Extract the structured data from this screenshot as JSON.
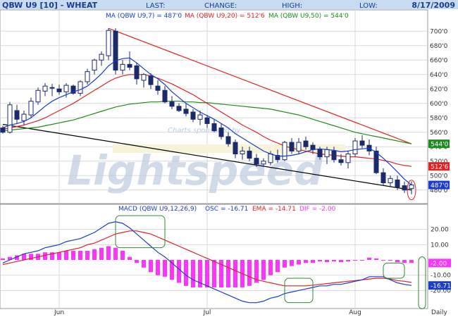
{
  "header": {
    "symbol": "QBW U9 [10] - WHEAT",
    "last_label": "LAST:",
    "change_label": "CHANGE:",
    "high_label": "HIGH:",
    "low_label": "LOW:",
    "date": "8/17/2009"
  },
  "colors": {
    "header_bg": "#c7dcf3",
    "header_text": "#1a3d8f",
    "grid": "#d9d9d9",
    "candle": "#1b2a6b",
    "ma7": "#1a3ccf",
    "ma20": "#e02222",
    "ma50": "#1d8a1d",
    "trend_upper": "#e02222",
    "trend_lower": "#000000",
    "histogram": "#ff33ff",
    "macd": "#1a3ccf",
    "signal": "#e02222",
    "highlight_box": "#2e8b2e",
    "highlight_ellipse": "#e02222",
    "watermark": "#bccbe0"
  },
  "watermark": {
    "main": "Lightspeed",
    "small": "Charts sponsored by"
  },
  "bottom_label": "Daily",
  "chart_data": [
    {
      "type": "candlestick",
      "title": "QBW U9 [10] - WHEAT",
      "legend": [
        {
          "name": "MA (QBW U9,7) = 487'0",
          "color": "#1a3ccf"
        },
        {
          "name": "MA (QBW U9,20) = 512'6",
          "color": "#e02222"
        },
        {
          "name": "MA (QBW U9,50) = 544'0",
          "color": "#1d8a1d"
        }
      ],
      "x_ticks": [
        "Jun",
        "Jul",
        "Aug"
      ],
      "x_tick_index": [
        8,
        29,
        50
      ],
      "y_ticks": [
        "700'0",
        "680'0",
        "660'0",
        "640'0",
        "620'0",
        "600'0",
        "580'0",
        "560'0",
        "540'0",
        "520'0",
        "500'0",
        "480'0"
      ],
      "ylim": [
        470,
        710
      ],
      "price_tags": [
        {
          "label": "544'0",
          "value": 544,
          "color": "#1d8a1d"
        },
        {
          "label": "512'6",
          "value": 512.75,
          "color": "#e02222"
        },
        {
          "label": "487'0",
          "value": 487,
          "color": "#1a3ccf"
        }
      ],
      "candles": [
        [
          566,
          569,
          558,
          560
        ],
        [
          560,
          602,
          558,
          598
        ],
        [
          590,
          598,
          572,
          578
        ],
        [
          576,
          590,
          570,
          585
        ],
        [
          584,
          608,
          580,
          603
        ],
        [
          602,
          622,
          598,
          618
        ],
        [
          617,
          628,
          610,
          624
        ],
        [
          621,
          627,
          610,
          622
        ],
        [
          620,
          626,
          612,
          616
        ],
        [
          616,
          628,
          608,
          625
        ],
        [
          624,
          626,
          612,
          614
        ],
        [
          614,
          632,
          610,
          630
        ],
        [
          630,
          648,
          626,
          644
        ],
        [
          646,
          662,
          640,
          660
        ],
        [
          660,
          672,
          652,
          668
        ],
        [
          666,
          704,
          660,
          701
        ],
        [
          700,
          704,
          640,
          646
        ],
        [
          646,
          660,
          640,
          654
        ],
        [
          654,
          672,
          646,
          650
        ],
        [
          652,
          656,
          626,
          634
        ],
        [
          632,
          642,
          622,
          640
        ],
        [
          638,
          642,
          620,
          626
        ],
        [
          624,
          632,
          612,
          618
        ],
        [
          618,
          624,
          600,
          602
        ],
        [
          602,
          610,
          592,
          596
        ],
        [
          596,
          600,
          588,
          590
        ],
        [
          592,
          600,
          582,
          586
        ],
        [
          588,
          592,
          574,
          578
        ],
        [
          578,
          590,
          570,
          584
        ],
        [
          580,
          584,
          566,
          572
        ],
        [
          572,
          578,
          560,
          562
        ],
        [
          566,
          572,
          550,
          554
        ],
        [
          554,
          560,
          540,
          544
        ],
        [
          546,
          550,
          524,
          530
        ],
        [
          530,
          540,
          522,
          534
        ],
        [
          534,
          540,
          520,
          524
        ],
        [
          524,
          530,
          512,
          516
        ],
        [
          516,
          524,
          512,
          520
        ],
        [
          518,
          534,
          514,
          530
        ],
        [
          528,
          536,
          518,
          522
        ],
        [
          522,
          548,
          520,
          546
        ],
        [
          546,
          552,
          530,
          534
        ],
        [
          534,
          552,
          530,
          546
        ],
        [
          548,
          554,
          536,
          540
        ],
        [
          542,
          546,
          530,
          536
        ],
        [
          536,
          540,
          522,
          526
        ],
        [
          526,
          540,
          516,
          536
        ],
        [
          534,
          540,
          518,
          522
        ],
        [
          522,
          530,
          514,
          518
        ],
        [
          518,
          534,
          510,
          530
        ],
        [
          530,
          552,
          526,
          548
        ],
        [
          548,
          556,
          538,
          542
        ],
        [
          542,
          550,
          528,
          534
        ],
        [
          534,
          540,
          502,
          504
        ],
        [
          504,
          510,
          486,
          490
        ],
        [
          490,
          500,
          484,
          496
        ],
        [
          494,
          500,
          480,
          484
        ],
        [
          486,
          492,
          476,
          480
        ],
        [
          482,
          492,
          474,
          487
        ]
      ],
      "ma7": [
        566,
        570,
        572,
        575,
        580,
        588,
        596,
        603,
        608,
        612,
        616,
        619,
        624,
        632,
        641,
        652,
        659,
        662,
        663,
        656,
        648,
        640,
        634,
        626,
        616,
        608,
        600,
        594,
        588,
        583,
        578,
        572,
        566,
        558,
        552,
        546,
        540,
        534,
        530,
        527,
        527,
        528,
        530,
        533,
        536,
        537,
        536,
        535,
        533,
        534,
        536,
        537,
        538,
        532,
        524,
        515,
        505,
        495,
        487
      ],
      "ma20": [
        564,
        566,
        568,
        570,
        573,
        576,
        580,
        585,
        590,
        595,
        600,
        606,
        612,
        618,
        624,
        630,
        635,
        638,
        640,
        640,
        640,
        638,
        635,
        631,
        627,
        622,
        617,
        612,
        606,
        600,
        594,
        588,
        582,
        576,
        570,
        565,
        560,
        554,
        549,
        545,
        541,
        538,
        536,
        534,
        532,
        530,
        529,
        528,
        527,
        526,
        526,
        525,
        524,
        523,
        521,
        519,
        516,
        514,
        512.75
      ],
      "ma50": [
        562,
        563,
        564,
        565,
        566,
        567,
        569,
        571,
        573,
        575,
        577,
        580,
        583,
        586,
        589,
        592,
        595,
        597,
        599,
        600,
        601,
        602,
        602,
        603,
        603,
        603,
        602,
        602,
        601,
        601,
        600,
        599,
        598,
        597,
        596,
        595,
        594,
        593,
        592,
        590,
        588,
        586,
        584,
        581,
        578,
        575,
        572,
        569,
        566,
        563,
        560,
        558,
        556,
        554,
        552,
        550,
        548,
        546,
        544
      ],
      "trend_upper": [
        [
          15,
          704
        ],
        [
          58,
          544
        ]
      ],
      "trend_lower": [
        [
          0,
          571
        ],
        [
          58,
          480
        ]
      ],
      "ellipse_index": 58
    },
    {
      "type": "macd",
      "legend": [
        {
          "name": "MACD (QBW U9,12,26,9)",
          "color": "#1a3ccf"
        },
        {
          "name": "OSC = -16.71",
          "color": "#1a3ccf"
        },
        {
          "name": "EMA = -14.71",
          "color": "#e02222"
        },
        {
          "name": "DIF = -2.00",
          "color": "#ff33ff"
        }
      ],
      "y_ticks": [
        "20.00",
        "10.00",
        "-10.00",
        "-20.00"
      ],
      "ylim": [
        -30,
        30
      ],
      "value_tags": [
        {
          "label": "-2.00",
          "value": -2.0,
          "color": "#ff33ff"
        },
        {
          "label": "-16.71",
          "value": -16.71,
          "color": "#1a3ccf"
        }
      ],
      "macd": [
        -2,
        0,
        2,
        4,
        5,
        6,
        8,
        9,
        10,
        12,
        13,
        14,
        16,
        18,
        21,
        24,
        25,
        24,
        21,
        17,
        13,
        9,
        5,
        2,
        -2,
        -6,
        -10,
        -13,
        -15,
        -17,
        -19,
        -21,
        -23,
        -25,
        -27,
        -28,
        -28,
        -27,
        -25,
        -24,
        -22,
        -21,
        -20,
        -19,
        -18,
        -17,
        -17,
        -16,
        -16,
        -15,
        -14,
        -13,
        -11,
        -11,
        -11,
        -13,
        -15,
        -16,
        -16.71
      ],
      "signal": [
        -3,
        -2,
        -1,
        0,
        1,
        2,
        3,
        4,
        5,
        6,
        7,
        8,
        10,
        11,
        13,
        15,
        17,
        18,
        19,
        19,
        18,
        17,
        15,
        13,
        11,
        9,
        7,
        5,
        3,
        1,
        -1,
        -3,
        -5,
        -7,
        -9,
        -11,
        -13,
        -14,
        -15,
        -16,
        -17,
        -17,
        -17,
        -17,
        -16.5,
        -16,
        -15.5,
        -15,
        -14.5,
        -14,
        -13.5,
        -13,
        -12.5,
        -12,
        -12,
        -12.5,
        -13.5,
        -14,
        -14.71
      ],
      "dif": [
        1,
        2,
        3,
        4,
        4,
        4,
        5,
        5,
        5,
        6,
        6,
        6,
        6,
        7,
        8,
        9,
        8,
        6,
        2,
        -2,
        -5,
        -8,
        -10,
        -11,
        -13,
        -15,
        -17,
        -18,
        -18,
        -18,
        -18,
        -18,
        -18,
        -18,
        -18,
        -17,
        -15,
        -13,
        -10,
        -8,
        -5,
        -4,
        -3,
        -2,
        -2,
        -1,
        -1.5,
        -1,
        -1.5,
        -1,
        -0.5,
        0,
        1.5,
        1,
        0,
        -0.5,
        -1.5,
        -2,
        -2
      ],
      "highlight_boxes": [
        [
          16,
          23,
          8,
          29
        ],
        [
          40,
          44,
          -28,
          -12
        ],
        [
          54,
          57,
          -12,
          -2
        ],
        [
          59,
          60,
          -32,
          2
        ]
      ]
    }
  ]
}
